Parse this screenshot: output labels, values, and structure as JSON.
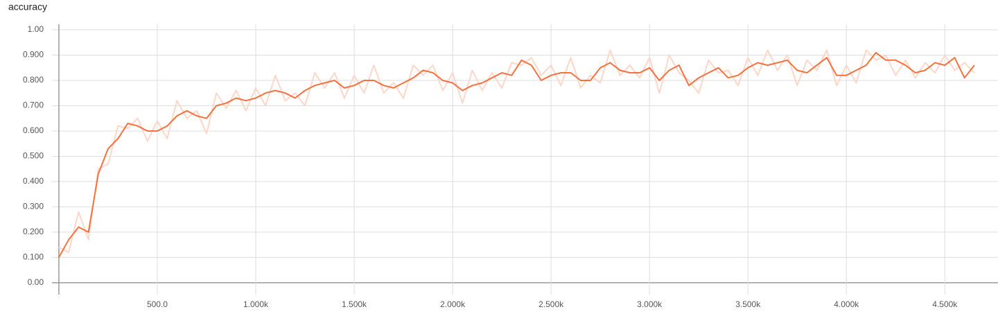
{
  "chart_data": {
    "type": "line",
    "title": "accuracy",
    "x": [
      0,
      50,
      100,
      150,
      200,
      250,
      300,
      350,
      400,
      450,
      500,
      550,
      600,
      650,
      700,
      750,
      800,
      850,
      900,
      950,
      1000,
      1050,
      1100,
      1150,
      1200,
      1250,
      1300,
      1350,
      1400,
      1450,
      1500,
      1550,
      1600,
      1650,
      1700,
      1750,
      1800,
      1850,
      1900,
      1950,
      2000,
      2050,
      2100,
      2150,
      2200,
      2250,
      2300,
      2350,
      2400,
      2450,
      2500,
      2550,
      2600,
      2650,
      2700,
      2750,
      2800,
      2850,
      2900,
      2950,
      3000,
      3050,
      3100,
      3150,
      3200,
      3250,
      3300,
      3350,
      3400,
      3450,
      3500,
      3550,
      3600,
      3650,
      3700,
      3750,
      3800,
      3850,
      3900,
      3950,
      4000,
      4050,
      4100,
      4150,
      4200,
      4250,
      4300,
      4350,
      4400,
      4450,
      4500,
      4550,
      4600,
      4650
    ],
    "series": [
      {
        "color": "#fcd6c8",
        "values": [
          0.14,
          0.12,
          0.28,
          0.17,
          0.45,
          0.47,
          0.62,
          0.61,
          0.65,
          0.56,
          0.64,
          0.57,
          0.72,
          0.65,
          0.68,
          0.59,
          0.75,
          0.69,
          0.76,
          0.68,
          0.77,
          0.7,
          0.82,
          0.72,
          0.75,
          0.7,
          0.83,
          0.77,
          0.83,
          0.73,
          0.82,
          0.75,
          0.86,
          0.75,
          0.79,
          0.73,
          0.86,
          0.82,
          0.86,
          0.76,
          0.83,
          0.71,
          0.84,
          0.76,
          0.83,
          0.77,
          0.87,
          0.86,
          0.89,
          0.82,
          0.86,
          0.78,
          0.89,
          0.77,
          0.82,
          0.79,
          0.92,
          0.82,
          0.86,
          0.81,
          0.89,
          0.75,
          0.9,
          0.83,
          0.8,
          0.75,
          0.88,
          0.83,
          0.84,
          0.78,
          0.89,
          0.82,
          0.92,
          0.84,
          0.9,
          0.78,
          0.88,
          0.84,
          0.92,
          0.78,
          0.86,
          0.79,
          0.92,
          0.88,
          0.9,
          0.82,
          0.88,
          0.81,
          0.87,
          0.83,
          0.9,
          0.84,
          0.87,
          0.83
        ]
      },
      {
        "color": "#f4713e",
        "values": [
          0.1,
          0.17,
          0.22,
          0.2,
          0.43,
          0.53,
          0.57,
          0.63,
          0.62,
          0.6,
          0.6,
          0.62,
          0.66,
          0.68,
          0.66,
          0.65,
          0.7,
          0.71,
          0.73,
          0.72,
          0.73,
          0.75,
          0.76,
          0.75,
          0.73,
          0.76,
          0.78,
          0.79,
          0.8,
          0.77,
          0.78,
          0.8,
          0.8,
          0.78,
          0.77,
          0.79,
          0.81,
          0.84,
          0.83,
          0.8,
          0.79,
          0.76,
          0.78,
          0.79,
          0.81,
          0.83,
          0.82,
          0.88,
          0.86,
          0.8,
          0.82,
          0.83,
          0.83,
          0.8,
          0.8,
          0.85,
          0.87,
          0.84,
          0.83,
          0.83,
          0.85,
          0.8,
          0.84,
          0.86,
          0.78,
          0.81,
          0.83,
          0.85,
          0.81,
          0.82,
          0.85,
          0.87,
          0.86,
          0.87,
          0.88,
          0.84,
          0.83,
          0.86,
          0.89,
          0.82,
          0.82,
          0.84,
          0.86,
          0.91,
          0.88,
          0.88,
          0.86,
          0.83,
          0.84,
          0.87,
          0.86,
          0.89,
          0.81,
          0.86
        ]
      }
    ],
    "xlim": [
      -35,
      4770
    ],
    "xticks": [
      {
        "value": 500,
        "label": "500.0"
      },
      {
        "value": 1000,
        "label": "1.000k"
      },
      {
        "value": 1500,
        "label": "1.500k"
      },
      {
        "value": 2000,
        "label": "2.000k"
      },
      {
        "value": 2500,
        "label": "2.500k"
      },
      {
        "value": 3000,
        "label": "3.000k"
      },
      {
        "value": 3500,
        "label": "3.500k"
      },
      {
        "value": 4000,
        "label": "4.000k"
      },
      {
        "value": 4500,
        "label": "4.500k"
      }
    ],
    "ylim": [
      -0.047,
      1.022
    ],
    "yticks": [
      {
        "value": 0,
        "label": "0.00"
      },
      {
        "value": 0.1,
        "label": "0.100"
      },
      {
        "value": 0.2,
        "label": "0.200"
      },
      {
        "value": 0.3,
        "label": "0.300"
      },
      {
        "value": 0.4,
        "label": "0.400"
      },
      {
        "value": 0.5,
        "label": "0.500"
      },
      {
        "value": 0.6,
        "label": "0.600"
      },
      {
        "value": 0.7,
        "label": "0.700"
      },
      {
        "value": 0.8,
        "label": "0.800"
      },
      {
        "value": 0.9,
        "label": "0.900"
      },
      {
        "value": 1,
        "label": "1.00"
      }
    ],
    "grid": true
  }
}
